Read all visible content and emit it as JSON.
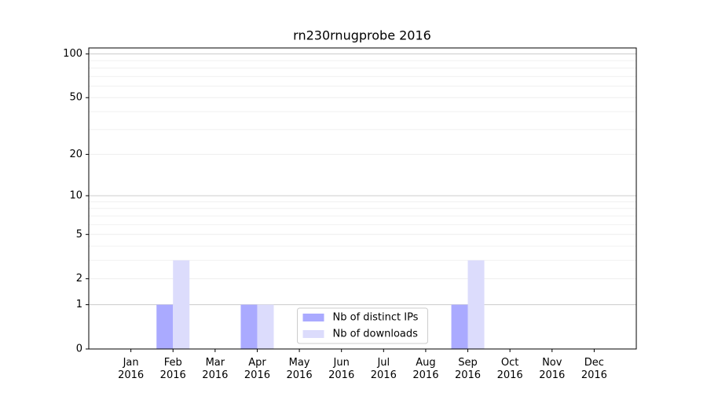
{
  "chart_data": {
    "type": "bar",
    "title": "rn230rnugprobe 2016",
    "categories": [
      "Jan 2016",
      "Feb 2016",
      "Mar 2016",
      "Apr 2016",
      "May 2016",
      "Jun 2016",
      "Jul 2016",
      "Aug 2016",
      "Sep 2016",
      "Oct 2016",
      "Nov 2016",
      "Dec 2016"
    ],
    "series": [
      {
        "name": "Nb of distinct IPs",
        "color": "#aaaaff",
        "values": [
          0,
          1,
          0,
          1,
          0,
          0,
          0,
          0,
          1,
          0,
          0,
          0
        ]
      },
      {
        "name": "Nb of downloads",
        "color": "#dcdcfc",
        "values": [
          0,
          3,
          0,
          1,
          0,
          0,
          0,
          0,
          3,
          0,
          0,
          0
        ]
      }
    ],
    "yscale": "log1p",
    "ylim": [
      0,
      110
    ],
    "yticks": [
      0,
      1,
      2,
      5,
      10,
      20,
      50,
      100
    ],
    "yminor": [
      3,
      4,
      6,
      7,
      8,
      9,
      30,
      40,
      60,
      70,
      80,
      90
    ],
    "grid": true,
    "legend": "lower center"
  }
}
